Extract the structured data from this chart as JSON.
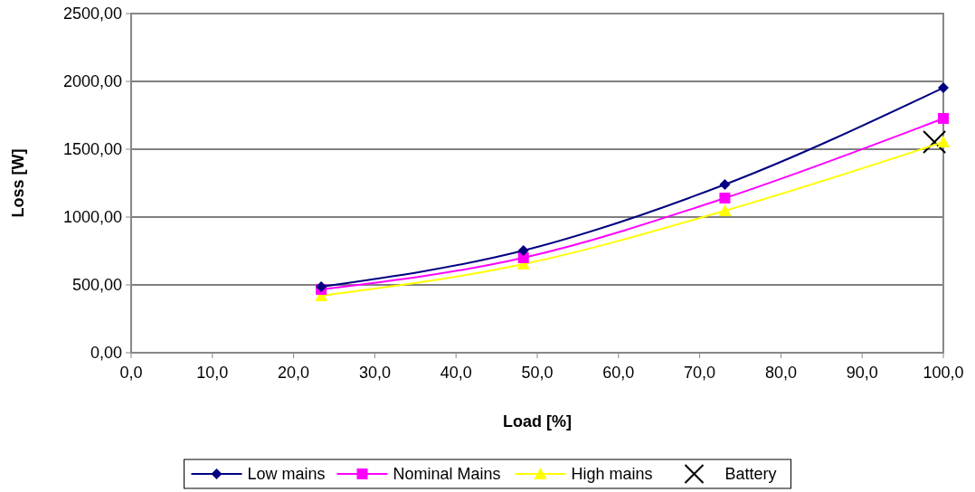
{
  "chart_data": {
    "type": "line",
    "xlabel": "Load [%]",
    "ylabel": "Loss [W]",
    "xlim": [
      0,
      100
    ],
    "ylim": [
      0,
      2500
    ],
    "xticks": [
      {
        "value": 0,
        "label": "0,0"
      },
      {
        "value": 10,
        "label": "10,0"
      },
      {
        "value": 20,
        "label": "20,0"
      },
      {
        "value": 30,
        "label": "30,0"
      },
      {
        "value": 40,
        "label": "40,0"
      },
      {
        "value": 50,
        "label": "50,0"
      },
      {
        "value": 60,
        "label": "60,0"
      },
      {
        "value": 70,
        "label": "70,0"
      },
      {
        "value": 80,
        "label": "80,0"
      },
      {
        "value": 90,
        "label": "90,0"
      },
      {
        "value": 100,
        "label": "100,0"
      }
    ],
    "yticks": [
      {
        "value": 0,
        "label": "0,00"
      },
      {
        "value": 500,
        "label": "500,00"
      },
      {
        "value": 1000,
        "label": "1000,00"
      },
      {
        "value": 1500,
        "label": "1500,00"
      },
      {
        "value": 2000,
        "label": "2000,00"
      },
      {
        "value": 2500,
        "label": "2500,00"
      }
    ],
    "grid": "y",
    "legend": "bottom",
    "series": [
      {
        "name": "Low mains",
        "color": "#000080",
        "marker": "diamond",
        "x": [
          23.4,
          48.3,
          73.1,
          100
        ],
        "values": [
          487,
          753,
          1240,
          1953
        ]
      },
      {
        "name": "Nominal Mains",
        "color": "#ff00ff",
        "marker": "square",
        "x": [
          23.4,
          48.3,
          73.1,
          100
        ],
        "values": [
          467,
          700,
          1140,
          1727
        ]
      },
      {
        "name": "High mains",
        "color": "#ffff00",
        "marker": "triangle",
        "x": [
          23.4,
          48.3,
          73.1,
          100
        ],
        "values": [
          420,
          653,
          1047,
          1553
        ]
      },
      {
        "name": "Battery",
        "color": "#000000",
        "type": "scatter",
        "marker": "cross",
        "x": [
          98.9
        ],
        "values": [
          1553
        ]
      }
    ]
  }
}
